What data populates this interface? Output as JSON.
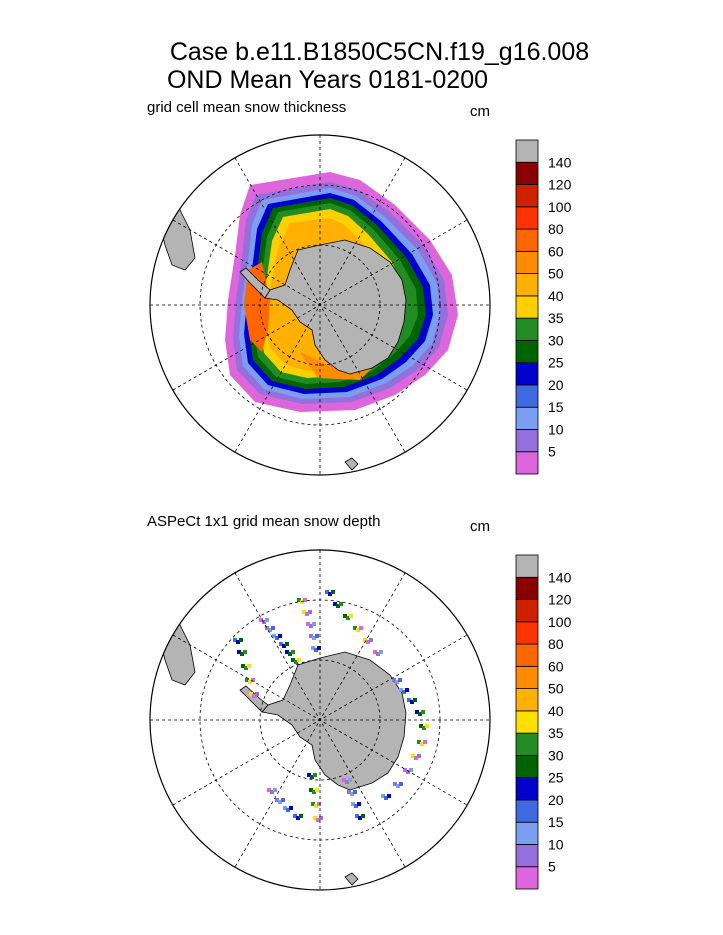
{
  "figure": {
    "title_line1": "Case b.e11.B1850C5CN.f19_g16.008",
    "title_line2": "OND Mean   Years 0181-0200"
  },
  "chart_data": [
    {
      "type": "heatmap",
      "projection": "south-polar-stereographic",
      "title": "grid cell mean snow thickness",
      "units": "cm",
      "colorbar": {
        "levels": [
          "5",
          "10",
          "15",
          "20",
          "25",
          "30",
          "35",
          "40",
          "50",
          "60",
          "80",
          "100",
          "120",
          "140"
        ],
        "colors": [
          "#dd66dd",
          "#9370db",
          "#7b9ff0",
          "#4169e1",
          "#0000cd",
          "#006400",
          "#228b22",
          "#ffd000",
          "#ffb000",
          "#ff8c00",
          "#ff6600",
          "#ff3300",
          "#cc2200",
          "#8b0000",
          "#b4b4b4"
        ]
      },
      "land_color": "#b4b4b4"
    },
    {
      "type": "heatmap",
      "projection": "south-polar-stereographic",
      "title": "ASPeCt 1x1 grid mean snow depth",
      "units": "cm",
      "colorbar": {
        "levels": [
          "5",
          "10",
          "15",
          "20",
          "25",
          "30",
          "35",
          "40",
          "50",
          "60",
          "80",
          "100",
          "120",
          "140"
        ],
        "colors": [
          "#dd66dd",
          "#9370db",
          "#7b9ff0",
          "#4169e1",
          "#0000cd",
          "#006400",
          "#228b22",
          "#ffe000",
          "#ffb000",
          "#ff8c00",
          "#ff6600",
          "#ff3300",
          "#cc2200",
          "#8b0000",
          "#b4b4b4"
        ]
      },
      "land_color": "#b4b4b4"
    }
  ]
}
